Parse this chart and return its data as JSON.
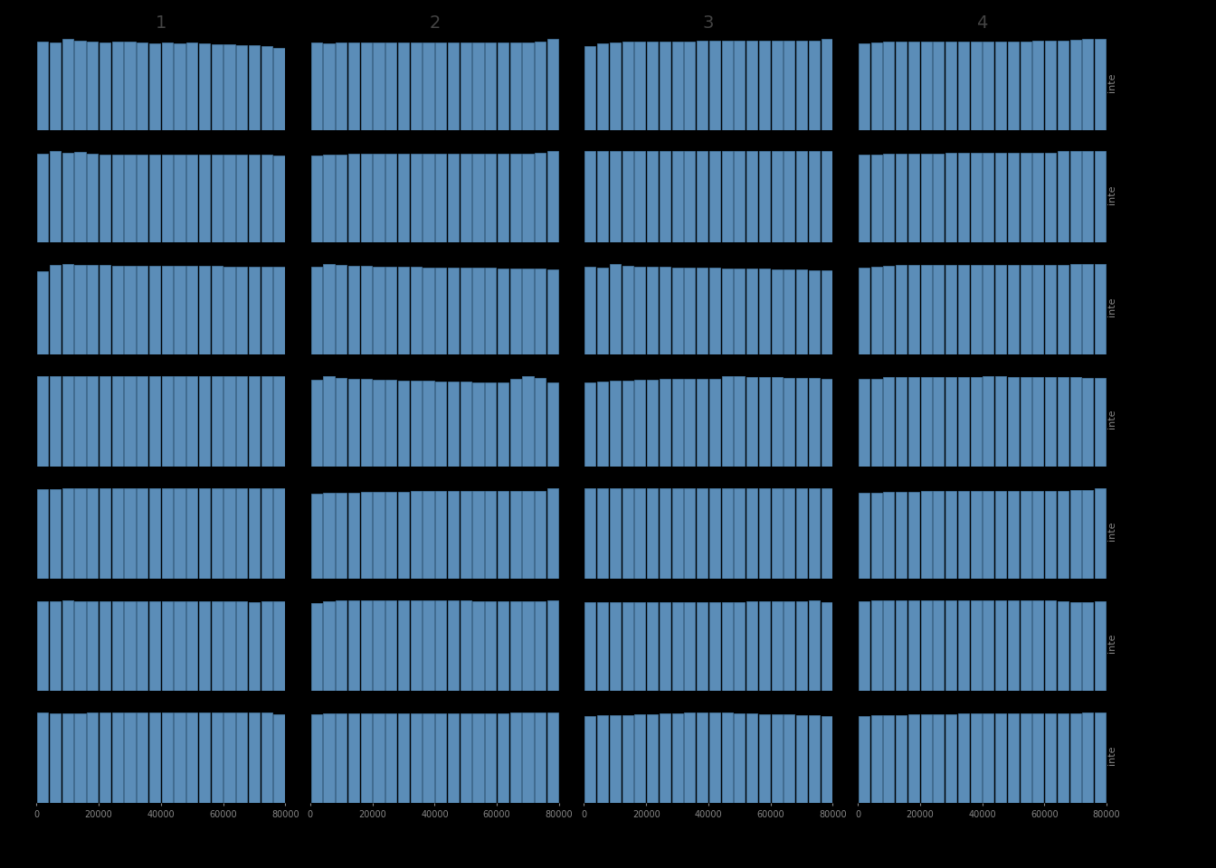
{
  "n_cols": 4,
  "n_rows": 7,
  "col_labels": [
    "1",
    "2",
    "3",
    "4"
  ],
  "row_labels": [
    "inte",
    "inte",
    "inte",
    "inte",
    "inte",
    "inte",
    "inte"
  ],
  "n_bins": 20,
  "xlim": [
    0,
    80000
  ],
  "xticks": [
    0,
    20000,
    40000,
    60000,
    80000
  ],
  "xticklabels": [
    "0",
    "20000",
    "40000",
    "60000",
    "80000"
  ],
  "bar_color": "#5b8db8",
  "bar_edgecolor": "#4a7da8",
  "background_color": "#000000",
  "text_color": "#888888",
  "title_color": "#444444",
  "bar_data": {
    "r0c0": [
      0.97,
      0.96,
      1.0,
      0.98,
      0.97,
      0.96,
      0.97,
      0.97,
      0.96,
      0.95,
      0.96,
      0.95,
      0.96,
      0.95,
      0.94,
      0.94,
      0.93,
      0.93,
      0.92,
      0.9
    ],
    "r0c1": [
      0.96,
      0.95,
      0.96,
      0.96,
      0.96,
      0.96,
      0.96,
      0.96,
      0.96,
      0.96,
      0.96,
      0.96,
      0.96,
      0.96,
      0.96,
      0.96,
      0.96,
      0.96,
      0.97,
      1.0
    ],
    "r0c2": [
      0.92,
      0.95,
      0.96,
      0.97,
      0.97,
      0.97,
      0.97,
      0.97,
      0.97,
      0.98,
      0.98,
      0.98,
      0.98,
      0.98,
      0.98,
      0.98,
      0.98,
      0.98,
      0.98,
      1.0
    ],
    "r0c3": [
      0.95,
      0.96,
      0.97,
      0.97,
      0.97,
      0.97,
      0.97,
      0.97,
      0.97,
      0.97,
      0.97,
      0.97,
      0.97,
      0.97,
      0.98,
      0.98,
      0.98,
      0.99,
      1.0,
      1.0
    ],
    "r1c0": [
      0.97,
      1.0,
      0.98,
      0.99,
      0.97,
      0.96,
      0.96,
      0.96,
      0.96,
      0.96,
      0.96,
      0.96,
      0.96,
      0.96,
      0.96,
      0.96,
      0.96,
      0.96,
      0.96,
      0.95
    ],
    "r1c1": [
      0.95,
      0.96,
      0.96,
      0.97,
      0.97,
      0.97,
      0.97,
      0.97,
      0.97,
      0.97,
      0.97,
      0.97,
      0.97,
      0.97,
      0.97,
      0.97,
      0.97,
      0.97,
      0.98,
      1.0
    ],
    "r1c2": [
      0.97,
      0.97,
      0.97,
      0.97,
      0.97,
      0.97,
      0.97,
      0.97,
      0.97,
      0.97,
      0.97,
      0.97,
      0.97,
      0.97,
      0.97,
      0.97,
      0.97,
      0.97,
      0.97,
      0.97
    ],
    "r1c3": [
      0.95,
      0.95,
      0.96,
      0.96,
      0.96,
      0.96,
      0.96,
      0.97,
      0.97,
      0.97,
      0.97,
      0.97,
      0.97,
      0.97,
      0.97,
      0.97,
      0.98,
      0.98,
      0.98,
      0.98
    ],
    "r2c0": [
      0.92,
      0.99,
      1.0,
      0.99,
      0.99,
      0.99,
      0.98,
      0.98,
      0.98,
      0.98,
      0.98,
      0.98,
      0.98,
      0.98,
      0.98,
      0.97,
      0.97,
      0.97,
      0.97,
      0.97
    ],
    "r2c1": [
      0.97,
      1.0,
      0.99,
      0.98,
      0.98,
      0.97,
      0.97,
      0.97,
      0.97,
      0.96,
      0.96,
      0.96,
      0.96,
      0.96,
      0.96,
      0.95,
      0.95,
      0.95,
      0.95,
      0.94
    ],
    "r2c2": [
      0.97,
      0.96,
      1.0,
      0.98,
      0.97,
      0.97,
      0.97,
      0.96,
      0.96,
      0.96,
      0.96,
      0.95,
      0.95,
      0.95,
      0.95,
      0.94,
      0.94,
      0.94,
      0.93,
      0.93
    ],
    "r2c3": [
      0.94,
      0.95,
      0.96,
      0.97,
      0.97,
      0.97,
      0.97,
      0.97,
      0.97,
      0.97,
      0.97,
      0.97,
      0.97,
      0.97,
      0.97,
      0.97,
      0.97,
      0.98,
      0.98,
      0.98
    ],
    "r3c0": [
      0.97,
      0.97,
      0.97,
      0.97,
      0.97,
      0.97,
      0.97,
      0.97,
      0.97,
      0.97,
      0.97,
      0.97,
      0.97,
      0.97,
      0.97,
      0.97,
      0.97,
      0.97,
      0.97,
      0.97
    ],
    "r3c1": [
      0.95,
      0.99,
      0.97,
      0.96,
      0.96,
      0.95,
      0.95,
      0.94,
      0.94,
      0.94,
      0.93,
      0.93,
      0.93,
      0.92,
      0.92,
      0.92,
      0.96,
      0.99,
      0.97,
      0.92
    ],
    "r3c2": [
      0.93,
      0.94,
      0.95,
      0.95,
      0.96,
      0.96,
      0.97,
      0.97,
      0.97,
      0.97,
      0.97,
      1.0,
      1.0,
      0.99,
      0.99,
      0.99,
      0.98,
      0.98,
      0.98,
      0.97
    ],
    "r3c3": [
      0.95,
      0.95,
      0.97,
      0.97,
      0.97,
      0.97,
      0.97,
      0.97,
      0.97,
      0.97,
      0.98,
      0.98,
      0.97,
      0.97,
      0.97,
      0.97,
      0.97,
      0.97,
      0.96,
      0.96
    ],
    "r4c0": [
      0.96,
      0.96,
      0.97,
      0.97,
      0.97,
      0.97,
      0.97,
      0.97,
      0.97,
      0.97,
      0.97,
      0.97,
      0.97,
      0.97,
      0.97,
      0.97,
      0.97,
      0.97,
      0.97,
      0.97
    ],
    "r4c1": [
      0.94,
      0.95,
      0.95,
      0.95,
      0.96,
      0.96,
      0.96,
      0.96,
      0.97,
      0.97,
      0.97,
      0.97,
      0.97,
      0.97,
      0.97,
      0.97,
      0.97,
      0.97,
      0.97,
      1.0
    ],
    "r4c2": [
      0.97,
      0.97,
      0.97,
      0.97,
      0.97,
      0.97,
      0.97,
      0.97,
      0.97,
      0.97,
      0.97,
      0.97,
      0.97,
      0.97,
      0.97,
      0.97,
      0.97,
      0.97,
      0.97,
      0.97
    ],
    "r4c3": [
      0.95,
      0.95,
      0.96,
      0.96,
      0.96,
      0.97,
      0.97,
      0.97,
      0.97,
      0.97,
      0.97,
      0.97,
      0.97,
      0.97,
      0.97,
      0.97,
      0.97,
      0.98,
      0.98,
      1.0
    ],
    "r5c0": [
      0.97,
      0.97,
      0.98,
      0.97,
      0.97,
      0.97,
      0.97,
      0.97,
      0.97,
      0.97,
      0.97,
      0.97,
      0.97,
      0.97,
      0.97,
      0.97,
      0.97,
      0.96,
      0.97,
      0.97
    ],
    "r5c1": [
      0.94,
      0.96,
      0.97,
      0.97,
      0.97,
      0.97,
      0.97,
      0.97,
      0.97,
      0.97,
      0.97,
      0.97,
      0.97,
      0.96,
      0.96,
      0.96,
      0.96,
      0.96,
      0.96,
      0.97
    ],
    "r5c2": [
      0.96,
      0.96,
      0.96,
      0.96,
      0.96,
      0.96,
      0.96,
      0.96,
      0.96,
      0.96,
      0.96,
      0.96,
      0.96,
      0.97,
      0.97,
      0.97,
      0.97,
      0.97,
      0.98,
      0.96
    ],
    "r5c3": [
      0.96,
      0.97,
      0.97,
      0.97,
      0.97,
      0.97,
      0.97,
      0.97,
      0.97,
      0.97,
      0.97,
      0.97,
      0.97,
      0.97,
      0.97,
      0.97,
      0.96,
      0.95,
      0.95,
      0.96
    ],
    "r6c0": [
      0.96,
      0.95,
      0.95,
      0.95,
      0.96,
      0.96,
      0.96,
      0.96,
      0.96,
      0.96,
      0.96,
      0.96,
      0.96,
      0.96,
      0.96,
      0.96,
      0.96,
      0.96,
      0.96,
      0.94
    ],
    "r6c1": [
      0.92,
      0.93,
      0.93,
      0.93,
      0.93,
      0.93,
      0.93,
      0.93,
      0.93,
      0.93,
      0.93,
      0.93,
      0.93,
      0.93,
      0.93,
      0.93,
      0.94,
      0.94,
      0.94,
      0.94
    ],
    "r6c2": [
      0.93,
      0.94,
      0.94,
      0.94,
      0.95,
      0.95,
      0.96,
      0.96,
      0.97,
      0.97,
      0.97,
      0.97,
      0.96,
      0.96,
      0.95,
      0.95,
      0.95,
      0.94,
      0.94,
      0.93
    ],
    "r6c3": [
      0.93,
      0.94,
      0.94,
      0.94,
      0.95,
      0.95,
      0.95,
      0.95,
      0.96,
      0.96,
      0.96,
      0.96,
      0.96,
      0.96,
      0.96,
      0.96,
      0.96,
      0.96,
      0.97,
      0.97
    ]
  }
}
